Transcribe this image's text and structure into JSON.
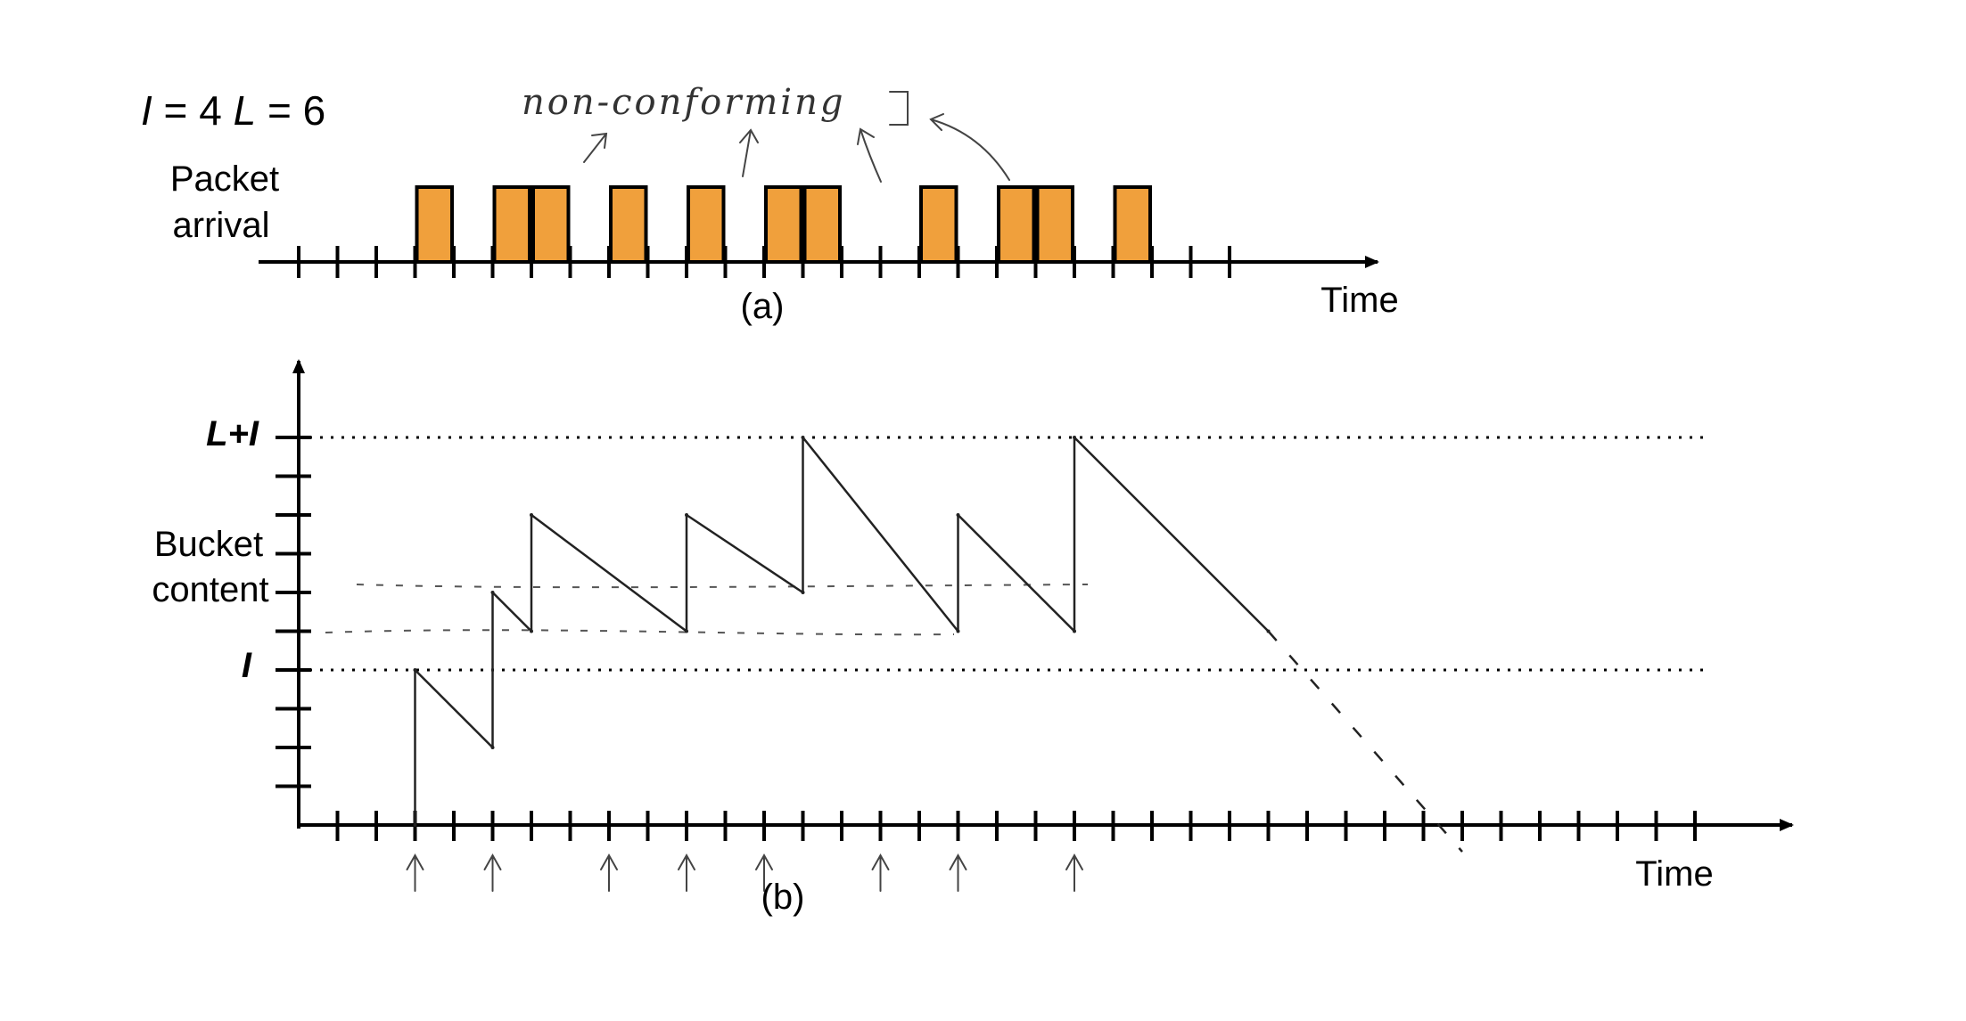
{
  "params": {
    "I": "4",
    "L": "6"
  },
  "panel_a": {
    "ylabel_line1": "Packet",
    "ylabel_line2": "arrival",
    "xlabel": "Time",
    "caption": "(a)",
    "annotation": "non-conforming",
    "arrival_slots": [
      3,
      5,
      6,
      8,
      10,
      12,
      13,
      16,
      18,
      19,
      21
    ],
    "tick_count": 25,
    "box_color": "#f0a03c"
  },
  "panel_b": {
    "ylabel_line1": "Bucket",
    "ylabel_line2": "content",
    "xlabel": "Time",
    "caption": "(b)",
    "label_top": "L+I",
    "label_i": "I",
    "level_top": 10,
    "level_i": 4,
    "x_tick_count": 36,
    "y_tick_count": 10,
    "conforming_slots": [
      3,
      5,
      8,
      10,
      12,
      15,
      17,
      20
    ]
  },
  "chart_data": {
    "type": "line",
    "title": "",
    "xlabel": "Time",
    "ylabel": "Bucket content",
    "x": [
      3,
      3,
      5,
      5,
      6,
      6,
      10,
      10,
      13,
      13,
      17,
      17,
      20,
      20,
      25,
      30
    ],
    "series": [
      {
        "values": [
          0,
          4,
          2,
          6,
          5,
          8,
          5,
          8,
          6,
          10,
          5,
          8,
          5,
          10,
          5,
          0
        ]
      }
    ],
    "reference_lines": [
      {
        "label": "L+I",
        "y": 10
      },
      {
        "label": "I",
        "y": 4
      }
    ],
    "ylim": [
      0,
      10
    ]
  }
}
